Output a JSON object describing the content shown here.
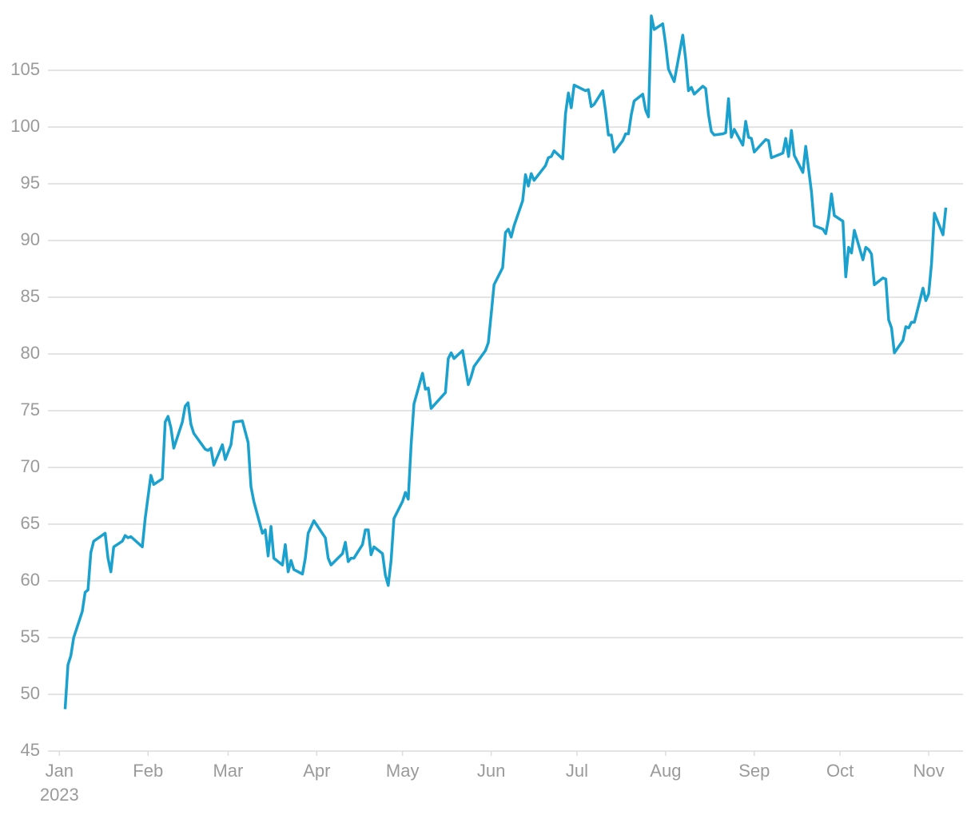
{
  "chart_data": {
    "type": "line",
    "x_year": "2023",
    "xlim": [
      -4,
      316
    ],
    "xticks": [
      {
        "value": 0,
        "label": "Jan"
      },
      {
        "value": 31,
        "label": "Feb"
      },
      {
        "value": 59,
        "label": "Mar"
      },
      {
        "value": 90,
        "label": "Apr"
      },
      {
        "value": 120,
        "label": "May"
      },
      {
        "value": 151,
        "label": "Jun"
      },
      {
        "value": 181,
        "label": "Jul"
      },
      {
        "value": 212,
        "label": "Aug"
      },
      {
        "value": 243,
        "label": "Sep"
      },
      {
        "value": 273,
        "label": "Oct"
      },
      {
        "value": 304,
        "label": "Nov"
      }
    ],
    "ylim": [
      45,
      110
    ],
    "yticks": [
      45,
      50,
      55,
      60,
      65,
      70,
      75,
      80,
      85,
      90,
      95,
      100,
      105
    ],
    "grid": true,
    "x": [
      2,
      3,
      4,
      5,
      8,
      9,
      10,
      11,
      12,
      16,
      17,
      18,
      19,
      22,
      23,
      24,
      25,
      29,
      30,
      32,
      33,
      36,
      37,
      38,
      39,
      40,
      43,
      44,
      45,
      46,
      47,
      51,
      52,
      53,
      54,
      57,
      58,
      60,
      61,
      64,
      66,
      67,
      68,
      71,
      72,
      73,
      74,
      75,
      78,
      79,
      80,
      81,
      82,
      85,
      86,
      87,
      89,
      93,
      94,
      95,
      99,
      100,
      101,
      102,
      103,
      106,
      107,
      108,
      109,
      110,
      113,
      114,
      115,
      116,
      117,
      120,
      121,
      122,
      123,
      124,
      127,
      128,
      129,
      130,
      135,
      136,
      137,
      138,
      141,
      142,
      143,
      144,
      145,
      149,
      150,
      151,
      152,
      155,
      156,
      157,
      158,
      159,
      162,
      163,
      164,
      165,
      166,
      170,
      171,
      172,
      173,
      176,
      177,
      178,
      179,
      180,
      184,
      185,
      186,
      187,
      190,
      191,
      192,
      193,
      194,
      197,
      198,
      199,
      200,
      201,
      204,
      205,
      206,
      207,
      208,
      211,
      212,
      213,
      215,
      218,
      219,
      220,
      221,
      222,
      225,
      226,
      227,
      228,
      229,
      232,
      233,
      234,
      235,
      236,
      239,
      240,
      241,
      242,
      243,
      247,
      248,
      249,
      252,
      253,
      254,
      255,
      256,
      257,
      260,
      261,
      262,
      263,
      264,
      267,
      268,
      269,
      270,
      271,
      274,
      275,
      276,
      277,
      278,
      281,
      282,
      283,
      284,
      285,
      288,
      289,
      290,
      291,
      292,
      295,
      296,
      297,
      298,
      299,
      302,
      303,
      304,
      305,
      306,
      309,
      310
    ],
    "series": [
      {
        "color": "#1ba1ce",
        "values": [
          48.7,
          52.6,
          53.4,
          55,
          57.3,
          59,
          59.2,
          62.5,
          63.5,
          64.2,
          62,
          60.8,
          63,
          63.5,
          64,
          63.8,
          63.9,
          63,
          65.5,
          69.3,
          68.5,
          69,
          74,
          74.5,
          73.5,
          71.7,
          74,
          75.4,
          75.7,
          73.8,
          73,
          71.6,
          71.5,
          71.7,
          70.2,
          72,
          70.7,
          72,
          74,
          74.1,
          72.2,
          68.3,
          67,
          64.2,
          64.5,
          62.2,
          64.8,
          62,
          61.4,
          63.2,
          60.8,
          61.8,
          61,
          60.6,
          62,
          64.2,
          65.3,
          63.8,
          62,
          61.4,
          62.4,
          63.4,
          61.7,
          62,
          62,
          63.2,
          64.5,
          64.5,
          62.3,
          63,
          62.4,
          60.5,
          59.6,
          61.8,
          65.5,
          67,
          67.8,
          67.2,
          72,
          75.6,
          78.3,
          76.9,
          77,
          75.2,
          76.6,
          79.6,
          80.1,
          79.6,
          80.3,
          78.8,
          77.3,
          78,
          78.9,
          80.3,
          81,
          83.5,
          86.1,
          87.6,
          90.7,
          91,
          90.3,
          91.3,
          93.5,
          95.8,
          94.8,
          95.9,
          95.3,
          96.6,
          97.3,
          97.4,
          97.9,
          97.2,
          101.2,
          103,
          101.7,
          103.7,
          103.2,
          103.3,
          101.8,
          102,
          103.2,
          101.4,
          99.3,
          99.3,
          97.8,
          98.8,
          99.4,
          99.4,
          101.1,
          102.3,
          102.9,
          101.5,
          100.9,
          109.8,
          108.6,
          109.1,
          107.3,
          105.1,
          104,
          108.1,
          106,
          103.2,
          103.5,
          102.9,
          103.6,
          103.4,
          101.1,
          99.6,
          99.3,
          99.4,
          99.5,
          102.5,
          99.1,
          99.8,
          98.4,
          100.5,
          99.1,
          99,
          97.8,
          98.9,
          98.8,
          97.3,
          97.6,
          97.7,
          99,
          97.4,
          99.7,
          97.5,
          96,
          98.3,
          96.3,
          94.3,
          91.3,
          91,
          90.6,
          92,
          94.1,
          92.2,
          91.7,
          86.8,
          89.4,
          88.9,
          90.9,
          88.3,
          89.4,
          89.2,
          88.8,
          86.1,
          86.7,
          86.6,
          83,
          82.3,
          80.1,
          81.2,
          82.4,
          82.3,
          82.8,
          82.8,
          85.8,
          84.7,
          85.3,
          88,
          92.4,
          90.5,
          92.9
        ]
      }
    ]
  }
}
